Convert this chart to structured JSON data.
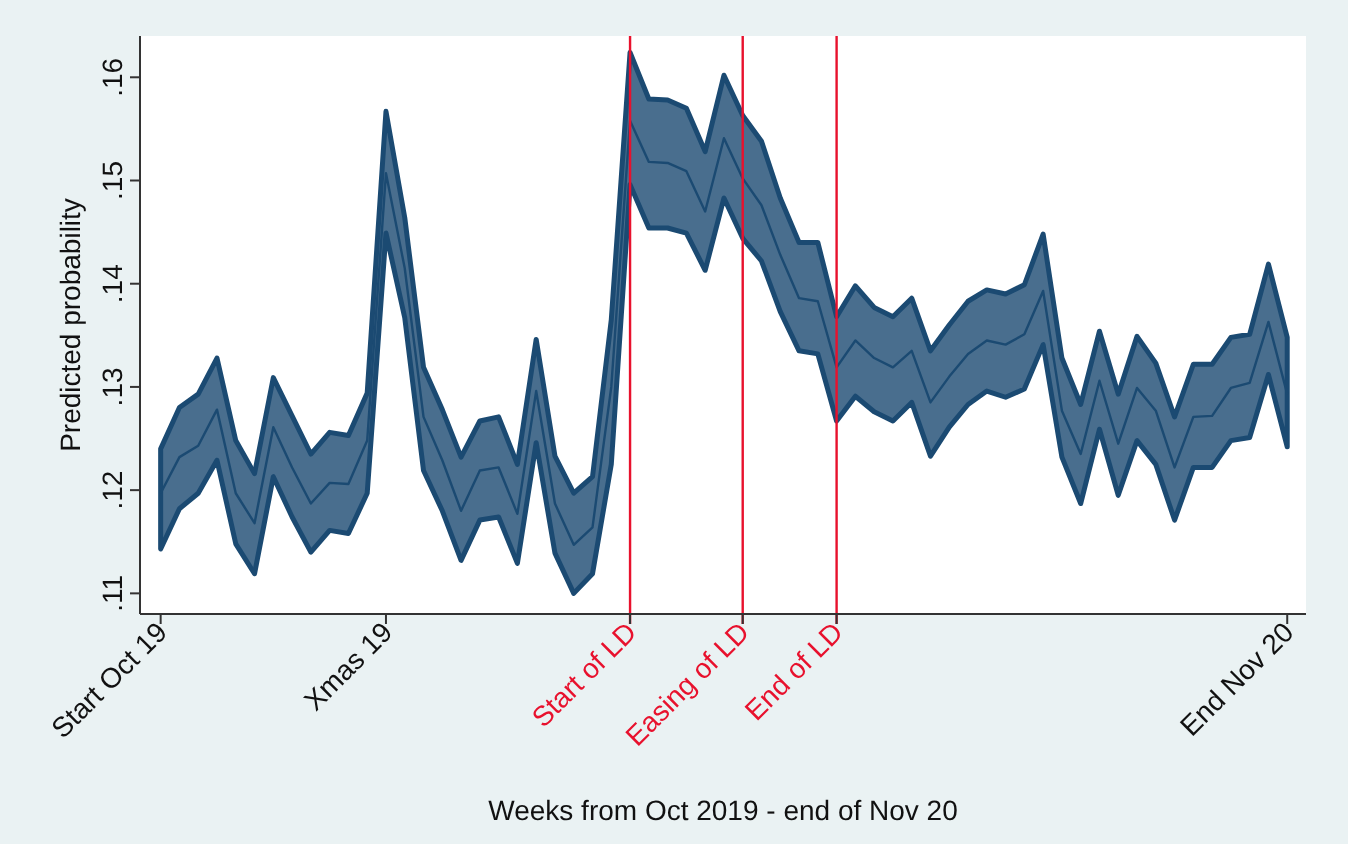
{
  "chart_data": {
    "type": "line",
    "xlabel": "Weeks from Oct 2019 - end of Nov 20",
    "ylabel": "Predicted probability",
    "categories": [
      "Start Oct 19",
      null,
      null,
      null,
      null,
      null,
      null,
      null,
      null,
      null,
      null,
      null,
      "Xmas 19",
      null,
      null,
      null,
      null,
      null,
      null,
      null,
      null,
      null,
      null,
      null,
      null,
      "Start of LD",
      null,
      null,
      null,
      null,
      null,
      "Easing of LD",
      null,
      null,
      null,
      null,
      "End of LD",
      null,
      null,
      null,
      null,
      null,
      null,
      null,
      null,
      null,
      null,
      null,
      null,
      null,
      null,
      null,
      null,
      null,
      null,
      null,
      null,
      null,
      null,
      null,
      "End Nov 20"
    ],
    "series": [
      {
        "color": "#1b4a72",
        "values": [
          0.1197,
          0.1232,
          0.1243,
          0.1278,
          0.1197,
          0.1168,
          0.1261,
          0.1222,
          0.1187,
          0.1207,
          0.1206,
          0.1248,
          0.1507,
          0.1415,
          0.1271,
          0.1229,
          0.118,
          0.1219,
          0.1222,
          0.1177,
          0.1296,
          0.1187,
          0.1147,
          0.1164,
          0.13,
          0.1558,
          0.1518,
          0.1517,
          0.1509,
          0.147,
          0.1541,
          0.1502,
          0.1476,
          0.1428,
          0.1386,
          0.1383,
          0.1319,
          0.1345,
          0.1328,
          0.1319,
          0.1335,
          0.1285,
          0.131,
          0.1332,
          0.1345,
          0.1341,
          0.1351,
          0.1393,
          0.1277,
          0.1235,
          0.1306,
          0.1245,
          0.1299,
          0.1277,
          0.1222,
          0.1271,
          0.1272,
          0.1299,
          0.1304,
          0.1363,
          0.1293
        ],
        "lower": [
          0.1143,
          0.1182,
          0.1197,
          0.1229,
          0.1148,
          0.1119,
          0.1213,
          0.1174,
          0.114,
          0.1161,
          0.1158,
          0.1197,
          0.1449,
          0.1367,
          0.1219,
          0.118,
          0.1132,
          0.1171,
          0.1174,
          0.1129,
          0.1246,
          0.1139,
          0.11,
          0.1119,
          0.1225,
          0.1496,
          0.1454,
          0.1454,
          0.1449,
          0.1413,
          0.1483,
          0.1444,
          0.1422,
          0.1373,
          0.1335,
          0.1332,
          0.1267,
          0.1291,
          0.1276,
          0.1267,
          0.1285,
          0.1233,
          0.1261,
          0.1283,
          0.1296,
          0.129,
          0.1298,
          0.1341,
          0.1232,
          0.1187,
          0.1259,
          0.1195,
          0.1248,
          0.1225,
          0.1171,
          0.1222,
          0.1222,
          0.1248,
          0.1251,
          0.1312,
          0.1242
        ],
        "upper": [
          0.124,
          0.128,
          0.1293,
          0.1328,
          0.1248,
          0.1216,
          0.1309,
          0.1272,
          0.1235,
          0.1256,
          0.1253,
          0.1294,
          0.1567,
          0.1464,
          0.1319,
          0.1278,
          0.1232,
          0.1267,
          0.1271,
          0.1225,
          0.1346,
          0.1233,
          0.1197,
          0.1213,
          0.1365,
          0.1624,
          0.1579,
          0.1578,
          0.157,
          0.1528,
          0.1602,
          0.1563,
          0.1538,
          0.1483,
          0.144,
          0.144,
          0.1368,
          0.1398,
          0.1377,
          0.1368,
          0.1386,
          0.1335,
          0.136,
          0.1383,
          0.1394,
          0.139,
          0.1399,
          0.1448,
          0.1328,
          0.1283,
          0.1354,
          0.1293,
          0.1349,
          0.1323,
          0.1271,
          0.1322,
          0.1322,
          0.1348,
          0.1351,
          0.1419,
          0.1348
        ]
      }
    ],
    "ylim": [
      0.108,
      0.164
    ],
    "yticks": [
      {
        "value": 0.11,
        "label": ".11"
      },
      {
        "value": 0.12,
        "label": ".12"
      },
      {
        "value": 0.13,
        "label": ".13"
      },
      {
        "value": 0.14,
        "label": ".14"
      },
      {
        "value": 0.15,
        "label": ".15"
      },
      {
        "value": 0.16,
        "label": ".16"
      }
    ],
    "ref_lines": [
      {
        "axis": "x",
        "value": "Start of LD",
        "color": "#e8112d"
      },
      {
        "axis": "x",
        "value": "Easing of LD",
        "color": "#e8112d"
      },
      {
        "axis": "x",
        "value": "End of LD",
        "color": "#e8112d"
      }
    ],
    "marker": "none",
    "line_style": "solid"
  }
}
